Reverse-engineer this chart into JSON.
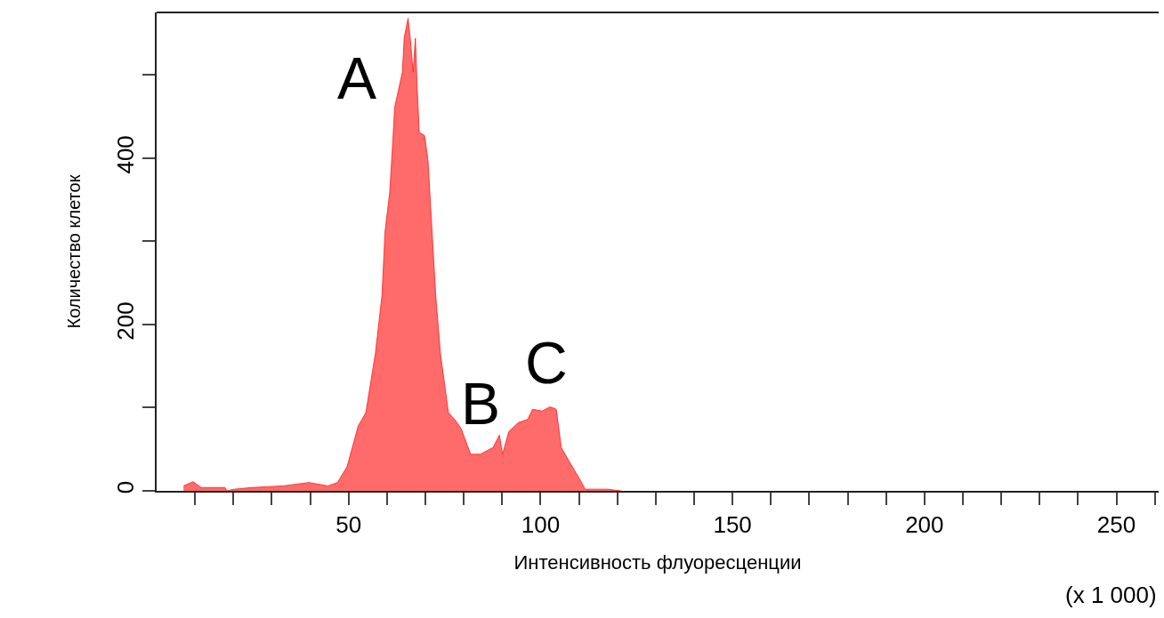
{
  "chart_data": {
    "type": "area",
    "xlabel": "Интенсивность флуоресценции",
    "ylabel": "Количество клеток",
    "x": [
      7.0,
      9.5,
      11.6,
      17.8,
      18.3,
      20.2,
      24.8,
      33,
      39.7,
      44.6,
      47.1,
      49.6,
      52.5,
      54.5,
      57,
      58.7,
      59.5,
      60.7,
      61.5,
      62,
      64,
      64.5,
      65.5,
      66.1,
      66.8,
      67.4,
      67.8,
      68.4,
      69.8,
      70.7,
      71.5,
      72.7,
      73.9,
      76,
      77.6,
      79.3,
      81.8,
      84.3,
      87.6,
      89.3,
      90.1,
      91.7,
      94.2,
      96.7,
      97.9,
      100.4,
      102.5,
      104.1,
      105.4,
      107.4,
      110.7,
      111.6,
      117.4,
      121
    ],
    "series": [
      {
        "color": "#ff1a1a",
        "values": [
          6,
          11,
          4,
          4,
          0,
          2,
          4,
          6,
          10,
          6,
          10,
          29,
          78,
          94,
          166,
          235,
          312,
          358,
          419,
          461,
          503,
          545,
          568,
          542,
          503,
          544,
          492,
          431,
          427,
          396,
          331,
          235,
          166,
          94,
          86,
          75,
          44,
          44,
          52,
          67,
          44,
          71,
          82,
          86,
          98,
          96,
          101,
          98,
          52,
          36,
          10,
          2,
          2,
          0
        ]
      }
    ],
    "xlim": [
      0,
      261
    ],
    "xticks": [
      {
        "value": 10,
        "label": null
      },
      {
        "value": 20,
        "label": null
      },
      {
        "value": 30,
        "label": null
      },
      {
        "value": 40,
        "label": null
      },
      50,
      {
        "value": 60,
        "label": null
      },
      {
        "value": 70,
        "label": null
      },
      {
        "value": 80,
        "label": null
      },
      {
        "value": 90,
        "label": null
      },
      100,
      {
        "value": 110,
        "label": null
      },
      {
        "value": 120,
        "label": null
      },
      {
        "value": 130,
        "label": null
      },
      {
        "value": 140,
        "label": null
      },
      150,
      {
        "value": 160,
        "label": null
      },
      {
        "value": 170,
        "label": null
      },
      {
        "value": 180,
        "label": null
      },
      {
        "value": 190,
        "label": null
      },
      200,
      {
        "value": 210,
        "label": null
      },
      {
        "value": 220,
        "label": null
      },
      {
        "value": 230,
        "label": null
      },
      {
        "value": 240,
        "label": null
      },
      250,
      {
        "value": 260,
        "label": null
      }
    ],
    "ylim": [
      0,
      575
    ],
    "yticks": [
      0,
      {
        "value": 100,
        "label": null
      },
      200,
      {
        "value": 300,
        "label": null
      },
      400,
      {
        "value": 500,
        "label": null
      }
    ],
    "annotations": [
      "A",
      "B",
      "C",
      "(x 1 000)"
    ],
    "marker": "none",
    "line_style": "solid"
  }
}
